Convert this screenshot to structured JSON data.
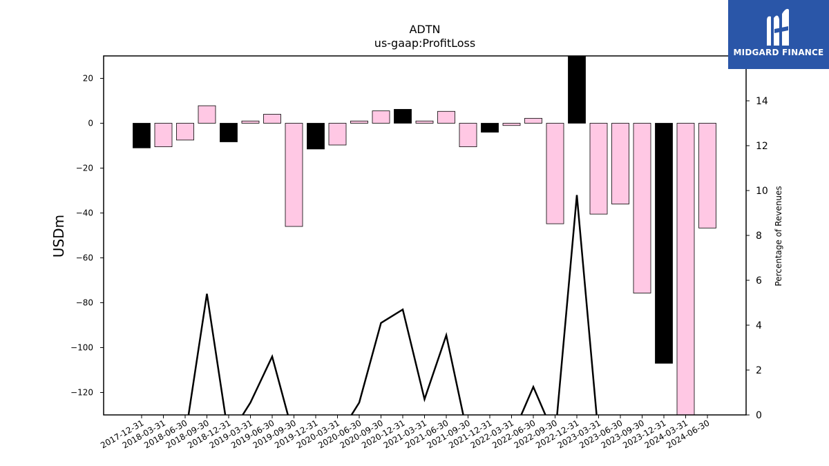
{
  "chart_data": {
    "type": "bar",
    "title": "ADTN",
    "subtitle": "us-gaap:ProfitLoss",
    "ylabel": "USDm",
    "y2label": "Percentage of Revenues",
    "ylim": [
      -130,
      30
    ],
    "y2lim": [
      0,
      16
    ],
    "yticks": [
      20,
      0,
      -20,
      -40,
      -60,
      -80,
      -100,
      -120
    ],
    "y2ticks": [
      0,
      2,
      4,
      6,
      8,
      10,
      12,
      14
    ],
    "categories": [
      "2017-12-31",
      "2018-03-31",
      "2018-06-30",
      "2018-09-30",
      "2018-12-31",
      "2019-03-31",
      "2019-06-30",
      "2019-09-30",
      "2019-12-31",
      "2020-03-31",
      "2020-06-30",
      "2020-09-30",
      "2020-12-31",
      "2021-03-31",
      "2021-06-30",
      "2021-09-30",
      "2021-12-31",
      "2022-03-31",
      "2022-06-30",
      "2022-09-30",
      "2022-12-31",
      "2023-03-31",
      "2023-06-30",
      "2023-09-30",
      "2023-12-31",
      "2024-03-31",
      "2024-06-30"
    ],
    "series": [
      {
        "type": "bar",
        "values": [
          -11,
          -10.5,
          -7.5,
          7.8,
          -8.3,
          1,
          4,
          -46,
          -11.5,
          -9.7,
          1,
          5.5,
          6.2,
          1,
          5.3,
          -10.5,
          -4,
          -1,
          2.2,
          -44.8,
          33,
          -40.5,
          -36,
          -75.7,
          -107,
          -140,
          -46.7
        ],
        "colors": [
          "#000000",
          "#ffc8e4",
          "#ffc8e4",
          "#ffc8e4",
          "#000000",
          "#ffc8e4",
          "#ffc8e4",
          "#ffc8e4",
          "#000000",
          "#ffc8e4",
          "#ffc8e4",
          "#ffc8e4",
          "#000000",
          "#ffc8e4",
          "#ffc8e4",
          "#ffc8e4",
          "#000000",
          "#ffc8e4",
          "#ffc8e4",
          "#ffc8e4",
          "#000000",
          "#ffc8e4",
          "#ffc8e4",
          "#ffc8e4",
          "#000000",
          "#ffc8e4",
          "#ffc8e4"
        ]
      },
      {
        "type": "line",
        "axis": "right",
        "values": [
          -1,
          -1,
          -1,
          5.4,
          -1,
          0.55,
          2.6,
          -1,
          -1,
          -1,
          0.55,
          4.1,
          4.7,
          0.7,
          3.55,
          -1,
          -1,
          -1,
          1.25,
          -1,
          9.8,
          -1,
          -1,
          -1,
          -1,
          -1,
          -1
        ]
      }
    ],
    "colors": {
      "pink": "#ffc8e4",
      "black": "#000000",
      "logo_bg": "#2a56a8"
    }
  },
  "logo": {
    "text": "MIDGARD FINANCE",
    "icon": "midgard-logo-icon"
  }
}
